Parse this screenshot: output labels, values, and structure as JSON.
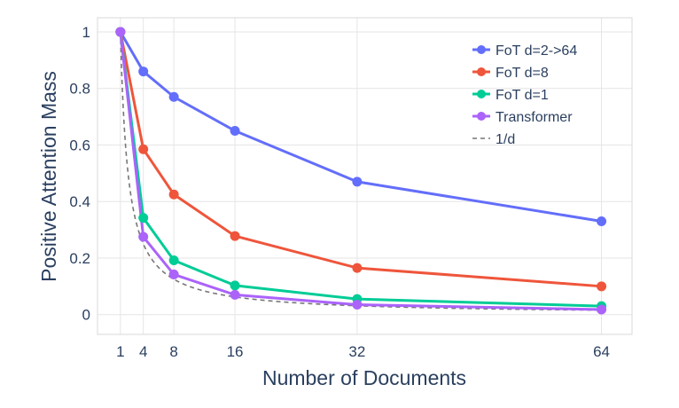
{
  "chart_data": {
    "type": "line",
    "title": "",
    "xlabel": "Number of Documents",
    "ylabel": "Positive Attention Mass",
    "xlim": [
      -2,
      68
    ],
    "ylim": [
      -0.07,
      1.05
    ],
    "xticks": [
      1,
      4,
      8,
      16,
      32,
      64
    ],
    "yticks": [
      0,
      0.2,
      0.4,
      0.6,
      0.8,
      1
    ],
    "ytick_labels": [
      "0",
      "0.2",
      "0.4",
      "0.6",
      "0.8",
      "1"
    ],
    "grid": true,
    "legend_position": "top-right",
    "x": [
      1,
      4,
      8,
      16,
      32,
      64
    ],
    "series": [
      {
        "name": "FoT d=2->64",
        "color": "#636efa",
        "values": [
          1.0,
          0.86,
          0.77,
          0.65,
          0.47,
          0.33
        ]
      },
      {
        "name": "FoT d=8",
        "color": "#ef553b",
        "values": [
          1.0,
          0.585,
          0.425,
          0.278,
          0.165,
          0.1
        ]
      },
      {
        "name": "FoT d=1",
        "color": "#00cc96",
        "values": [
          1.0,
          0.342,
          0.192,
          0.103,
          0.055,
          0.03
        ]
      },
      {
        "name": "Transformer",
        "color": "#ab63fa",
        "values": [
          1.0,
          0.275,
          0.142,
          0.07,
          0.035,
          0.018
        ]
      }
    ],
    "reference": {
      "name": "1/d",
      "color": "#777777",
      "style": "dashed",
      "formula": "1/d"
    }
  }
}
